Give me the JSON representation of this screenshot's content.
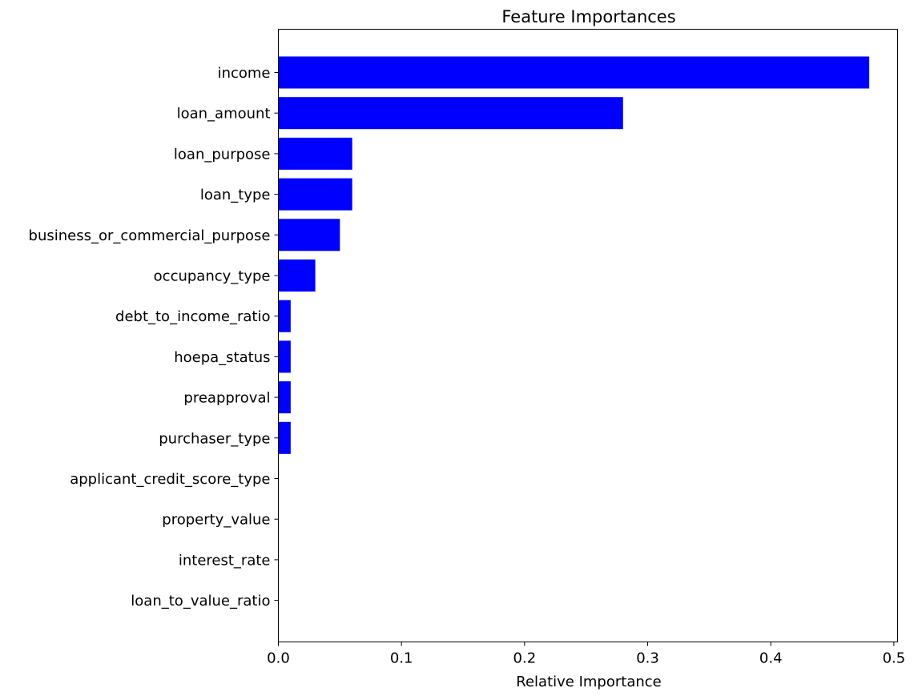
{
  "chart_data": {
    "type": "bar",
    "orientation": "horizontal",
    "title": "Feature Importances",
    "xlabel": "Relative Importance",
    "ylabel": "",
    "xlim": [
      0,
      0.503
    ],
    "xticks": [
      0.0,
      0.1,
      0.2,
      0.3,
      0.4,
      0.5
    ],
    "xtick_labels": [
      "0.0",
      "0.1",
      "0.2",
      "0.3",
      "0.4",
      "0.5"
    ],
    "grid": false,
    "bar_color": "#0000ff",
    "categories": [
      "income",
      "loan_amount",
      "loan_purpose",
      "loan_type",
      "business_or_commercial_purpose",
      "occupancy_type",
      "debt_to_income_ratio",
      "hoepa_status",
      "preapproval",
      "purchaser_type",
      "applicant_credit_score_type",
      "property_value",
      "interest_rate",
      "loan_to_value_ratio"
    ],
    "values": [
      0.48,
      0.28,
      0.06,
      0.06,
      0.05,
      0.03,
      0.01,
      0.01,
      0.01,
      0.01,
      0.0,
      0.0,
      0.0,
      0.0
    ]
  }
}
